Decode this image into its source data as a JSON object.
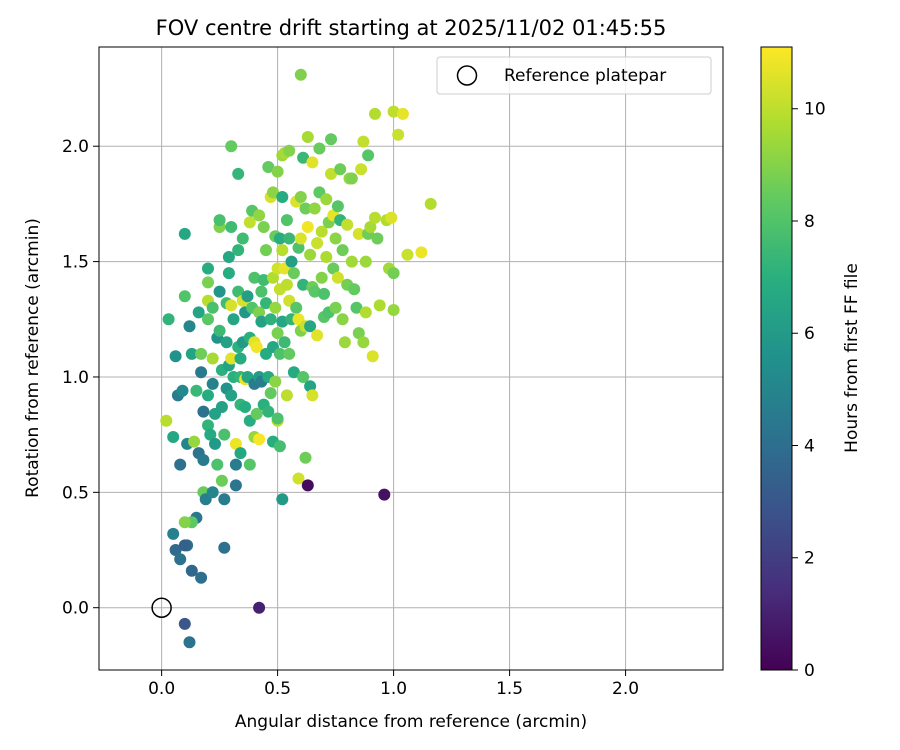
{
  "chart_data": {
    "type": "scatter",
    "title": "FOV centre drift starting at 2025/11/02 01:45:55",
    "xlabel": "Angular distance from reference (arcmin)",
    "ylabel": "Rotation from reference (arcmin)",
    "xlim": [
      -0.27,
      2.42
    ],
    "ylim": [
      -0.27,
      2.43
    ],
    "xticks": [
      0.0,
      0.5,
      1.0,
      1.5,
      2.0
    ],
    "yticks": [
      0.0,
      0.5,
      1.0,
      1.5,
      2.0
    ],
    "tick_format": "0.0",
    "grid": true,
    "colormap": "viridis",
    "colorbar": {
      "label": "Hours from first FF file",
      "range": [
        0,
        11.1
      ],
      "ticks": [
        0,
        2,
        4,
        6,
        8,
        10
      ]
    },
    "legend": {
      "placement": "top-right",
      "entries": [
        {
          "label": "Reference platepar",
          "marker": "open-circle"
        }
      ]
    },
    "reference_point": {
      "x": 0.0,
      "y": 0.0,
      "label": "Reference platepar"
    },
    "points": [
      [
        0.02,
        0.81,
        9.9
      ],
      [
        0.03,
        1.25,
        7.2
      ],
      [
        0.05,
        0.74,
        6.6
      ],
      [
        0.06,
        1.09,
        5.6
      ],
      [
        0.07,
        0.92,
        4.6
      ],
      [
        0.09,
        0.94,
        5.2
      ],
      [
        0.05,
        0.32,
        4.8
      ],
      [
        0.06,
        0.25,
        3.8
      ],
      [
        0.08,
        0.21,
        4.1
      ],
      [
        0.11,
        0.27,
        4.0
      ],
      [
        0.1,
        0.27,
        3.4
      ],
      [
        0.13,
        0.16,
        3.7
      ],
      [
        0.17,
        0.13,
        4.0
      ],
      [
        0.1,
        -0.07,
        3.0
      ],
      [
        0.12,
        -0.15,
        4.2
      ],
      [
        0.42,
        0.0,
        1.0
      ],
      [
        0.27,
        0.26,
        4.1
      ],
      [
        0.08,
        0.62,
        4.1
      ],
      [
        0.15,
        0.39,
        4.4
      ],
      [
        0.13,
        0.37,
        8.3
      ],
      [
        0.1,
        0.37,
        9.0
      ],
      [
        0.1,
        1.35,
        8.0
      ],
      [
        0.1,
        1.62,
        6.6
      ],
      [
        0.12,
        1.22,
        5.1
      ],
      [
        0.13,
        1.1,
        6.4
      ],
      [
        0.11,
        0.71,
        5.0
      ],
      [
        0.14,
        0.72,
        9.3
      ],
      [
        0.16,
        0.67,
        4.2
      ],
      [
        0.15,
        0.94,
        7.4
      ],
      [
        0.16,
        1.28,
        6.4
      ],
      [
        0.17,
        1.1,
        8.6
      ],
      [
        0.17,
        1.02,
        4.5
      ],
      [
        0.18,
        0.85,
        4.2
      ],
      [
        0.18,
        0.64,
        4.5
      ],
      [
        0.18,
        0.5,
        8.5
      ],
      [
        0.19,
        0.47,
        4.7
      ],
      [
        0.2,
        1.47,
        6.8
      ],
      [
        0.2,
        1.41,
        8.8
      ],
      [
        0.2,
        1.25,
        8.2
      ],
      [
        0.2,
        1.33,
        9.9
      ],
      [
        0.2,
        0.92,
        6.8
      ],
      [
        0.2,
        0.79,
        7.2
      ],
      [
        0.21,
        0.75,
        6.7
      ],
      [
        0.22,
        0.5,
        5.0
      ],
      [
        0.22,
        1.3,
        7.8
      ],
      [
        0.22,
        1.08,
        9.6
      ],
      [
        0.22,
        0.97,
        4.9
      ],
      [
        0.23,
        0.84,
        6.3
      ],
      [
        0.23,
        0.71,
        6.0
      ],
      [
        0.24,
        1.17,
        5.6
      ],
      [
        0.24,
        0.62,
        7.9
      ],
      [
        0.25,
        1.65,
        8.9
      ],
      [
        0.25,
        1.68,
        7.8
      ],
      [
        0.25,
        1.37,
        5.8
      ],
      [
        0.25,
        1.2,
        7.5
      ],
      [
        0.26,
        1.03,
        7.0
      ],
      [
        0.26,
        0.87,
        6.3
      ],
      [
        0.26,
        0.55,
        8.6
      ],
      [
        0.27,
        0.47,
        4.6
      ],
      [
        0.27,
        0.75,
        7.8
      ],
      [
        0.28,
        1.32,
        7.6
      ],
      [
        0.28,
        1.15,
        6.3
      ],
      [
        0.28,
        0.95,
        5.6
      ],
      [
        0.29,
        1.52,
        6.6
      ],
      [
        0.29,
        1.45,
        6.8
      ],
      [
        0.29,
        1.05,
        6.4
      ],
      [
        0.3,
        2.0,
        8.4
      ],
      [
        0.3,
        1.65,
        7.6
      ],
      [
        0.3,
        1.31,
        10.4
      ],
      [
        0.3,
        1.08,
        10.6
      ],
      [
        0.3,
        0.92,
        6.3
      ],
      [
        0.31,
        1.25,
        6.5
      ],
      [
        0.31,
        1.0,
        7.0
      ],
      [
        0.32,
        0.71,
        10.8
      ],
      [
        0.32,
        0.62,
        4.6
      ],
      [
        0.32,
        0.53,
        4.3
      ],
      [
        0.33,
        1.88,
        7.3
      ],
      [
        0.33,
        1.55,
        7.2
      ],
      [
        0.33,
        1.37,
        7.6
      ],
      [
        0.33,
        1.13,
        7.1
      ],
      [
        0.34,
        1.08,
        6.8
      ],
      [
        0.34,
        1.0,
        7.3
      ],
      [
        0.34,
        0.88,
        7.3
      ],
      [
        0.34,
        0.67,
        6.6
      ],
      [
        0.35,
        1.33,
        10.4
      ],
      [
        0.35,
        1.6,
        7.6
      ],
      [
        0.35,
        1.15,
        6.0
      ],
      [
        0.36,
        1.28,
        5.8
      ],
      [
        0.36,
        0.99,
        10.8
      ],
      [
        0.36,
        0.87,
        6.9
      ],
      [
        0.37,
        1.35,
        6.2
      ],
      [
        0.37,
        1.0,
        6.5
      ],
      [
        0.38,
        1.67,
        10.1
      ],
      [
        0.38,
        1.17,
        7.0
      ],
      [
        0.38,
        0.81,
        6.9
      ],
      [
        0.38,
        0.62,
        8.1
      ],
      [
        0.39,
        1.72,
        8.1
      ],
      [
        0.39,
        1.3,
        8.0
      ],
      [
        0.4,
        1.43,
        7.9
      ],
      [
        0.4,
        1.15,
        10.6
      ],
      [
        0.4,
        0.97,
        4.6
      ],
      [
        0.4,
        0.74,
        9.3
      ],
      [
        0.41,
        1.13,
        10.9
      ],
      [
        0.41,
        0.84,
        8.4
      ],
      [
        0.42,
        1.7,
        9.2
      ],
      [
        0.42,
        1.28,
        8.9
      ],
      [
        0.42,
        1.0,
        6.1
      ],
      [
        0.42,
        0.73,
        11.0
      ],
      [
        0.43,
        1.37,
        7.9
      ],
      [
        0.43,
        1.24,
        6.3
      ],
      [
        0.43,
        0.98,
        4.7
      ],
      [
        0.44,
        1.65,
        8.8
      ],
      [
        0.44,
        1.42,
        7.6
      ],
      [
        0.44,
        0.88,
        7.0
      ],
      [
        0.45,
        1.55,
        8.7
      ],
      [
        0.45,
        1.32,
        7.3
      ],
      [
        0.45,
        1.1,
        6.8
      ],
      [
        0.46,
        1.91,
        8.4
      ],
      [
        0.46,
        1.0,
        6.7
      ],
      [
        0.46,
        0.85,
        7.2
      ],
      [
        0.47,
        1.78,
        10.4
      ],
      [
        0.47,
        1.25,
        7.1
      ],
      [
        0.47,
        0.93,
        8.4
      ],
      [
        0.48,
        1.8,
        9.1
      ],
      [
        0.48,
        1.43,
        9.8
      ],
      [
        0.48,
        1.13,
        6.6
      ],
      [
        0.48,
        0.72,
        6.9
      ],
      [
        0.49,
        1.61,
        8.5
      ],
      [
        0.49,
        1.3,
        9.3
      ],
      [
        0.49,
        0.98,
        9.1
      ],
      [
        0.5,
        1.89,
        9.0
      ],
      [
        0.5,
        1.47,
        10.3
      ],
      [
        0.5,
        1.19,
        8.8
      ],
      [
        0.5,
        0.81,
        10.0
      ],
      [
        0.5,
        0.82,
        7.9
      ],
      [
        0.51,
        1.6,
        6.9
      ],
      [
        0.51,
        1.38,
        10.1
      ],
      [
        0.51,
        1.1,
        7.9
      ],
      [
        0.51,
        0.7,
        7.7
      ],
      [
        0.52,
        1.96,
        9.4
      ],
      [
        0.52,
        1.78,
        6.8
      ],
      [
        0.52,
        1.55,
        9.9
      ],
      [
        0.52,
        1.24,
        6.6
      ],
      [
        0.52,
        0.47,
        6.0
      ],
      [
        0.53,
        1.97,
        9.6
      ],
      [
        0.53,
        1.47,
        10.7
      ],
      [
        0.53,
        1.15,
        7.5
      ],
      [
        0.54,
        1.68,
        8.0
      ],
      [
        0.54,
        1.4,
        10.0
      ],
      [
        0.54,
        0.92,
        10.0
      ],
      [
        0.55,
        1.98,
        9.0
      ],
      [
        0.55,
        1.6,
        7.4
      ],
      [
        0.55,
        1.33,
        10.3
      ],
      [
        0.55,
        1.1,
        8.4
      ],
      [
        0.56,
        1.5,
        6.2
      ],
      [
        0.56,
        1.25,
        7.2
      ],
      [
        0.57,
        1.45,
        8.5
      ],
      [
        0.57,
        1.02,
        6.7
      ],
      [
        0.58,
        1.76,
        10.5
      ],
      [
        0.58,
        1.3,
        8.1
      ],
      [
        0.59,
        1.56,
        7.9
      ],
      [
        0.59,
        1.25,
        10.8
      ],
      [
        0.59,
        0.56,
        10.3
      ],
      [
        0.6,
        2.31,
        8.9
      ],
      [
        0.6,
        1.78,
        9.0
      ],
      [
        0.6,
        1.6,
        10.5
      ],
      [
        0.6,
        1.2,
        8.9
      ],
      [
        0.61,
        1.95,
        7.4
      ],
      [
        0.61,
        1.4,
        7.2
      ],
      [
        0.61,
        1.0,
        8.1
      ],
      [
        0.62,
        1.73,
        8.6
      ],
      [
        0.62,
        1.22,
        10.2
      ],
      [
        0.62,
        0.65,
        8.6
      ],
      [
        0.63,
        2.04,
        9.6
      ],
      [
        0.63,
        1.65,
        10.9
      ],
      [
        0.63,
        0.53,
        0.3
      ],
      [
        0.64,
        1.53,
        9.4
      ],
      [
        0.64,
        1.22,
        6.6
      ],
      [
        0.64,
        0.96,
        6.4
      ],
      [
        0.65,
        1.93,
        10.6
      ],
      [
        0.65,
        1.39,
        8.6
      ],
      [
        0.65,
        0.92,
        10.4
      ],
      [
        0.66,
        1.73,
        9.2
      ],
      [
        0.66,
        1.37,
        8.2
      ],
      [
        0.67,
        1.58,
        10.2
      ],
      [
        0.67,
        1.18,
        10.6
      ],
      [
        0.68,
        1.99,
        8.5
      ],
      [
        0.68,
        1.8,
        8.3
      ],
      [
        0.69,
        1.63,
        9.9
      ],
      [
        0.69,
        1.43,
        9.0
      ],
      [
        0.7,
        1.36,
        7.9
      ],
      [
        0.7,
        1.26,
        8.1
      ],
      [
        0.71,
        1.77,
        9.4
      ],
      [
        0.71,
        1.52,
        9.7
      ],
      [
        0.72,
        1.67,
        8.8
      ],
      [
        0.72,
        1.28,
        7.9
      ],
      [
        0.73,
        2.03,
        8.4
      ],
      [
        0.73,
        1.88,
        10.1
      ],
      [
        0.74,
        1.7,
        10.7
      ],
      [
        0.74,
        1.47,
        8.5
      ],
      [
        0.75,
        1.6,
        9.1
      ],
      [
        0.75,
        1.3,
        8.8
      ],
      [
        0.76,
        1.74,
        8.1
      ],
      [
        0.76,
        1.43,
        10.3
      ],
      [
        0.77,
        1.9,
        8.6
      ],
      [
        0.77,
        1.68,
        7.2
      ],
      [
        0.78,
        1.55,
        8.6
      ],
      [
        0.78,
        1.25,
        9.1
      ],
      [
        0.79,
        1.15,
        9.4
      ],
      [
        0.8,
        1.66,
        10.1
      ],
      [
        0.8,
        1.4,
        8.7
      ],
      [
        0.81,
        1.86,
        9.3
      ],
      [
        0.82,
        1.86,
        8.9
      ],
      [
        0.82,
        1.5,
        9.5
      ],
      [
        0.83,
        1.38,
        8.4
      ],
      [
        0.84,
        1.3,
        8.1
      ],
      [
        0.85,
        1.62,
        10.4
      ],
      [
        0.85,
        1.19,
        8.8
      ],
      [
        0.86,
        1.9,
        10.2
      ],
      [
        0.87,
        2.02,
        10.1
      ],
      [
        0.87,
        1.15,
        9.3
      ],
      [
        0.88,
        1.5,
        9.4
      ],
      [
        0.88,
        1.28,
        9.8
      ],
      [
        0.89,
        1.96,
        8.1
      ],
      [
        0.89,
        1.62,
        8.6
      ],
      [
        0.9,
        1.65,
        9.6
      ],
      [
        0.91,
        1.09,
        10.5
      ],
      [
        0.92,
        2.14,
        9.8
      ],
      [
        0.92,
        1.69,
        9.9
      ],
      [
        0.93,
        1.6,
        8.6
      ],
      [
        0.94,
        1.31,
        9.7
      ],
      [
        0.96,
        0.49,
        0.5
      ],
      [
        0.97,
        1.68,
        9.8
      ],
      [
        0.98,
        1.47,
        9.5
      ],
      [
        0.99,
        1.69,
        10.5
      ],
      [
        1.0,
        2.15,
        10.0
      ],
      [
        1.0,
        1.29,
        9.3
      ],
      [
        1.0,
        1.45,
        8.7
      ],
      [
        1.02,
        2.05,
        10.2
      ],
      [
        1.04,
        2.14,
        10.7
      ],
      [
        1.06,
        1.53,
        10.2
      ],
      [
        1.12,
        1.54,
        10.8
      ],
      [
        1.16,
        1.75,
        9.8
      ]
    ]
  }
}
